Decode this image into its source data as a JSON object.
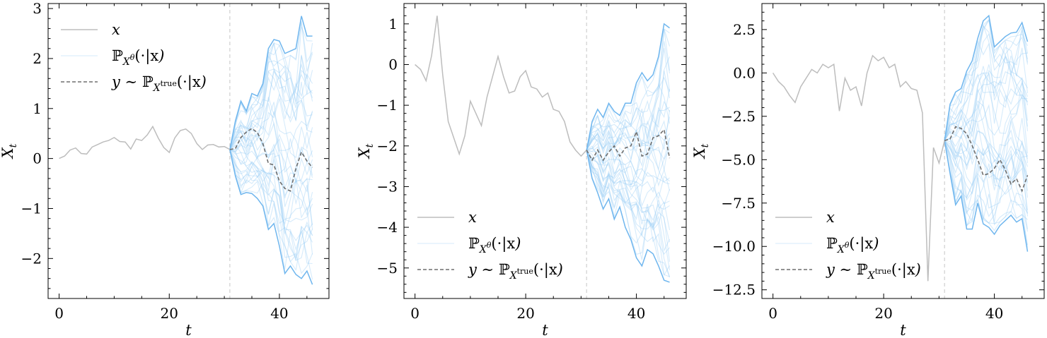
{
  "chart_data": [
    {
      "type": "line",
      "xlabel": "t",
      "ylabel": "X_t",
      "xlim": [
        -2,
        49
      ],
      "ylim": [
        -2.8,
        3.1
      ],
      "x_ticks": [
        0,
        20,
        40
      ],
      "y_ticks": [
        -2,
        -1,
        0,
        1,
        2,
        3
      ],
      "y_tick_labels": [
        "−2",
        "−1",
        "0",
        "1",
        "2",
        "3"
      ],
      "split_t": 31,
      "legend_position": "top-left",
      "legend": [
        "x",
        "ℙXθ(·|x)",
        "y ∼ ℙXtrue(·|x)"
      ],
      "series": [
        {
          "role": "context",
          "color": "#bdbdbd",
          "x": [
            0,
            1,
            2,
            3,
            4,
            5,
            6,
            7,
            8,
            9,
            10,
            11,
            12,
            13,
            14,
            15,
            16,
            17,
            18,
            19,
            20,
            21,
            22,
            23,
            24,
            25,
            26,
            27,
            28,
            29,
            30,
            31
          ],
          "values": [
            0,
            0.05,
            0.17,
            0.21,
            0.1,
            0.09,
            0.23,
            0.28,
            0.33,
            0.36,
            0.42,
            0.34,
            0.33,
            0.19,
            0.39,
            0.36,
            0.47,
            0.64,
            0.41,
            0.22,
            0.12,
            0.41,
            0.56,
            0.59,
            0.5,
            0.3,
            0.18,
            0.27,
            0.28,
            0.23,
            0.24,
            0.18
          ]
        },
        {
          "role": "true",
          "color": "#6e6e6e",
          "x": [
            31,
            32,
            33,
            34,
            35,
            36,
            37,
            38,
            39,
            40,
            41,
            42,
            43,
            44,
            45,
            46
          ],
          "values": [
            0.18,
            0.2,
            0.42,
            0.53,
            0.6,
            0.52,
            0.3,
            -0.1,
            -0.13,
            -0.45,
            -0.6,
            -0.65,
            -0.2,
            0.13,
            -0.05,
            -0.18
          ]
        },
        {
          "role": "upper",
          "color": "#6fb6ee",
          "x": [
            31,
            32,
            33,
            34,
            35,
            36,
            37,
            38,
            39,
            40,
            41,
            42,
            43,
            44,
            45,
            46
          ],
          "values": [
            0.18,
            0.75,
            1.15,
            0.95,
            1.3,
            1.25,
            1.5,
            2.2,
            2.38,
            2.35,
            2.1,
            2.15,
            2.2,
            2.85,
            2.45,
            2.45
          ]
        },
        {
          "role": "lower",
          "color": "#6fb6ee",
          "x": [
            31,
            32,
            33,
            34,
            35,
            36,
            37,
            38,
            39,
            40,
            41,
            42,
            43,
            44,
            45,
            46
          ],
          "values": [
            0.18,
            -0.35,
            -0.72,
            -0.68,
            -0.7,
            -0.8,
            -0.95,
            -1.42,
            -1.3,
            -1.75,
            -2.3,
            -2.15,
            -2.32,
            -2.4,
            -2.25,
            -2.52
          ]
        }
      ]
    },
    {
      "type": "line",
      "xlabel": "t",
      "ylabel": "X_t",
      "xlim": [
        -2,
        49
      ],
      "ylim": [
        -5.75,
        1.5
      ],
      "x_ticks": [
        0,
        20,
        40
      ],
      "y_ticks": [
        -5,
        -4,
        -3,
        -2,
        -1,
        0,
        1
      ],
      "y_tick_labels": [
        "−5",
        "−4",
        "−3",
        "−2",
        "−1",
        "0",
        "1"
      ],
      "split_t": 31,
      "legend_position": "bottom-left",
      "legend": [
        "x",
        "ℙXθ(·|x)",
        "y ∼ ℙXtrue(·|x)"
      ],
      "series": [
        {
          "role": "context",
          "color": "#bdbdbd",
          "x": [
            0,
            1,
            2,
            3,
            4,
            5,
            6,
            7,
            8,
            9,
            10,
            11,
            12,
            13,
            14,
            15,
            16,
            17,
            18,
            19,
            20,
            21,
            22,
            23,
            24,
            25,
            26,
            27,
            28,
            29,
            30,
            31
          ],
          "values": [
            0,
            -0.12,
            -0.4,
            0.22,
            1.2,
            -0.25,
            -1.4,
            -1.8,
            -2.2,
            -1.75,
            -0.9,
            -1.2,
            -1.5,
            -0.8,
            -0.3,
            0.2,
            -0.3,
            -0.7,
            -0.65,
            -0.3,
            -0.15,
            -0.55,
            -0.6,
            -0.8,
            -0.7,
            -1.1,
            -1.15,
            -1.4,
            -1.9,
            -2.1,
            -2.25,
            -2.1
          ]
        },
        {
          "role": "true",
          "color": "#6e6e6e",
          "x": [
            31,
            32,
            33,
            34,
            35,
            36,
            37,
            38,
            39,
            40,
            41,
            42,
            43,
            44,
            45,
            46
          ],
          "values": [
            -2.1,
            -2.35,
            -2.1,
            -2.35,
            -2.15,
            -2.0,
            -2.25,
            -2.05,
            -2.0,
            -1.65,
            -2.25,
            -2.2,
            -1.8,
            -1.75,
            -1.6,
            -2.3
          ]
        },
        {
          "role": "upper",
          "color": "#6fb6ee",
          "x": [
            31,
            32,
            33,
            34,
            35,
            36,
            37,
            38,
            39,
            40,
            41,
            42,
            43,
            44,
            45,
            46
          ],
          "values": [
            -2.1,
            -1.4,
            -1.1,
            -1.3,
            -0.95,
            -1.15,
            -1.25,
            -0.95,
            -0.95,
            -0.45,
            -0.2,
            -0.4,
            -0.25,
            0.2,
            1.0,
            0.9
          ]
        },
        {
          "role": "lower",
          "color": "#6fb6ee",
          "x": [
            31,
            32,
            33,
            34,
            35,
            36,
            37,
            38,
            39,
            40,
            41,
            42,
            43,
            44,
            45,
            46
          ],
          "values": [
            -2.1,
            -2.8,
            -3.15,
            -3.55,
            -3.3,
            -3.8,
            -3.5,
            -4.0,
            -4.3,
            -4.75,
            -4.95,
            -4.55,
            -4.65,
            -4.95,
            -5.3,
            -5.35
          ]
        }
      ]
    },
    {
      "type": "line",
      "xlabel": "t",
      "ylabel": "X_t",
      "xlim": [
        -2,
        49
      ],
      "ylim": [
        -13.0,
        4.0
      ],
      "x_ticks": [
        0,
        20,
        40
      ],
      "y_ticks": [
        -12.5,
        -10.0,
        -7.5,
        -5.0,
        -2.5,
        0.0,
        2.5
      ],
      "y_tick_labels": [
        "−12.5",
        "−10.0",
        "−7.5",
        "−5.0",
        "−2.5",
        "0.0",
        "2.5"
      ],
      "split_t": 31,
      "legend_position": "bottom-left",
      "legend": [
        "x",
        "ℙXθ(·|x)",
        "y ∼ ℙXtrue(·|x)"
      ],
      "series": [
        {
          "role": "context",
          "color": "#bdbdbd",
          "x": [
            0,
            1,
            2,
            3,
            4,
            5,
            6,
            7,
            8,
            9,
            10,
            11,
            12,
            13,
            14,
            15,
            16,
            17,
            18,
            19,
            20,
            21,
            22,
            23,
            24,
            25,
            26,
            27,
            28,
            29,
            30,
            31
          ],
          "values": [
            0,
            -0.5,
            -0.8,
            -1.3,
            -1.7,
            -0.8,
            -0.3,
            0.2,
            0.0,
            0.5,
            0.3,
            0.5,
            -2.2,
            -0.3,
            -1.0,
            -0.8,
            -1.9,
            0.0,
            1.0,
            0.7,
            0.9,
            0.3,
            0.5,
            -0.8,
            -0.5,
            -0.9,
            -1.0,
            -2.3,
            -12.0,
            -4.3,
            -5.2,
            -3.9
          ]
        },
        {
          "role": "true",
          "color": "#6e6e6e",
          "x": [
            31,
            32,
            33,
            34,
            35,
            36,
            37,
            38,
            39,
            40,
            41,
            42,
            43,
            44,
            45,
            46
          ],
          "values": [
            -3.9,
            -3.8,
            -3.1,
            -3.2,
            -3.5,
            -4.2,
            -5.0,
            -5.9,
            -5.8,
            -5.5,
            -5.0,
            -5.6,
            -6.4,
            -6.1,
            -6.8,
            -5.9
          ]
        },
        {
          "role": "upper",
          "color": "#6fb6ee",
          "x": [
            31,
            32,
            33,
            34,
            35,
            36,
            37,
            38,
            39,
            40,
            41,
            42,
            43,
            44,
            45,
            46
          ],
          "values": [
            -3.9,
            -1.8,
            -1.1,
            -0.9,
            0.1,
            0.7,
            2.0,
            3.0,
            3.3,
            1.5,
            1.8,
            2.1,
            2.3,
            2.35,
            2.9,
            1.8
          ]
        },
        {
          "role": "lower",
          "color": "#6fb6ee",
          "x": [
            31,
            32,
            33,
            34,
            35,
            36,
            37,
            38,
            39,
            40,
            41,
            42,
            43,
            44,
            45,
            46
          ],
          "values": [
            -3.9,
            -5.8,
            -7.6,
            -7.1,
            -9.0,
            -9.0,
            -7.5,
            -8.7,
            -8.9,
            -9.3,
            -8.8,
            -8.5,
            -8.2,
            -8.6,
            -8.4,
            -10.3
          ]
        }
      ]
    }
  ]
}
